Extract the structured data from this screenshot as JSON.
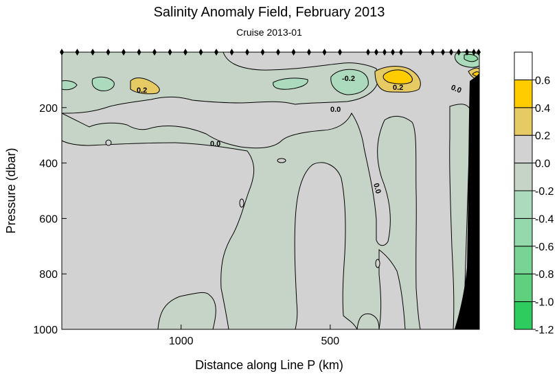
{
  "chart_data": {
    "type": "heatmap",
    "title": "Salinity Anomaly Field,  February 2013",
    "subtitle": "Cruise 2013-01",
    "xlabel": "Distance along Line P  (km)",
    "ylabel": "Pressure  (dbar)",
    "xlim": [
      1400,
      0
    ],
    "ylim": [
      0,
      1000
    ],
    "x_ticks": [
      1000,
      500
    ],
    "y_ticks": [
      200,
      400,
      600,
      800,
      1000
    ],
    "y_inverted": true,
    "station_count": 32,
    "colorbar": {
      "ticks": [
        "0.6",
        "0.4",
        "0.2",
        "0.0",
        "-0.2",
        "-0.4",
        "-0.6",
        "-0.8",
        "-1.0",
        "-1.2"
      ],
      "bins": [
        {
          "from": -1.2,
          "to": -1.0,
          "color": "#2ecc5e"
        },
        {
          "from": -1.0,
          "to": -0.8,
          "color": "#5ed07e"
        },
        {
          "from": -0.8,
          "to": -0.6,
          "color": "#78d495"
        },
        {
          "from": -0.6,
          "to": -0.4,
          "color": "#94d9ab"
        },
        {
          "from": -0.4,
          "to": -0.2,
          "color": "#acdabc"
        },
        {
          "from": -0.2,
          "to": 0.0,
          "color": "#c6d3c7"
        },
        {
          "from": 0.0,
          "to": 0.2,
          "color": "#d2d2d2"
        },
        {
          "from": 0.2,
          "to": 0.4,
          "color": "#e6ca64"
        },
        {
          "from": 0.4,
          "to": 0.6,
          "color": "#ffcc00"
        },
        {
          "from": 0.6,
          "to": 0.8,
          "color": "#ffffff"
        }
      ]
    },
    "contour_labels": [
      "0.2",
      "-0.2",
      "0.2",
      "0.0",
      "0.0",
      "0.0",
      "0.0"
    ]
  }
}
